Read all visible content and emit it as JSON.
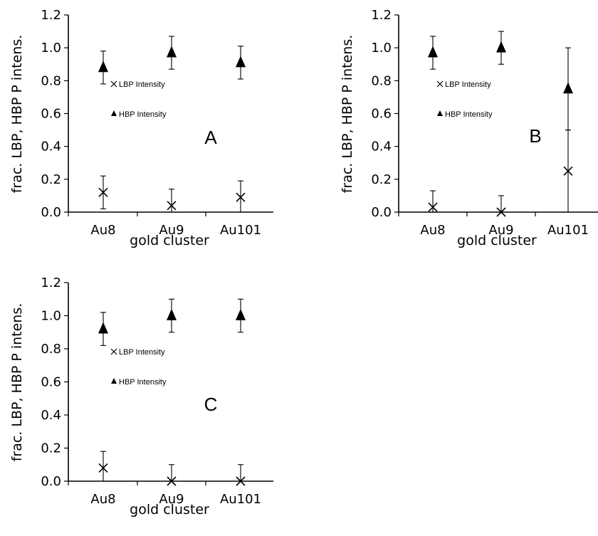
{
  "chart_data": [
    {
      "type": "scatter",
      "panel_label": "A",
      "categories": [
        "Au8",
        "Au9",
        "Au101"
      ],
      "xlabel": "gold cluster",
      "ylabel": "frac. LBP, HBP P intens.",
      "ylim": [
        0,
        1.2
      ],
      "yticks": [
        "0.0",
        "0.2",
        "0.4",
        "0.6",
        "0.8",
        "1.0",
        "1.2"
      ],
      "legend_position": "center-left",
      "series": [
        {
          "name": "LBP  Intensity",
          "marker": "x",
          "values": [
            0.12,
            0.04,
            0.09
          ],
          "errors": [
            0.1,
            0.1,
            0.1
          ]
        },
        {
          "name": "HBP Intensity",
          "marker": "triangle",
          "values": [
            0.88,
            0.97,
            0.91
          ],
          "errors": [
            0.1,
            0.1,
            0.1
          ]
        }
      ]
    },
    {
      "type": "scatter",
      "panel_label": "B",
      "categories": [
        "Au8",
        "Au9",
        "Au101"
      ],
      "xlabel": "gold cluster",
      "ylabel": "frac. LBP, HBP P intens.",
      "ylim": [
        0,
        1.2
      ],
      "yticks": [
        "0.0",
        "0.2",
        "0.4",
        "0.6",
        "0.8",
        "1.0",
        "1.2"
      ],
      "legend_position": "center-left",
      "series": [
        {
          "name": "LBP  Intensity",
          "marker": "x",
          "values": [
            0.03,
            0.0,
            0.25
          ],
          "errors": [
            0.1,
            0.1,
            0.25
          ]
        },
        {
          "name": "HBP Intensity",
          "marker": "triangle",
          "values": [
            0.97,
            1.0,
            0.75
          ],
          "errors": [
            0.1,
            0.1,
            0.25
          ]
        }
      ]
    },
    {
      "type": "scatter",
      "panel_label": "C",
      "categories": [
        "Au8",
        "Au9",
        "Au101"
      ],
      "xlabel": "gold cluster",
      "ylabel": "frac. LBP, HBP P intens.",
      "ylim": [
        0,
        1.2
      ],
      "yticks": [
        "0.0",
        "0.2",
        "0.4",
        "0.6",
        "0.8",
        "1.0",
        "1.2"
      ],
      "legend_position": "center-left",
      "series": [
        {
          "name": "LBP  Intensity",
          "marker": "x",
          "values": [
            0.08,
            0.0,
            0.0
          ],
          "errors": [
            0.1,
            0.1,
            0.1
          ]
        },
        {
          "name": "HBP Intensity",
          "marker": "triangle",
          "values": [
            0.92,
            1.0,
            1.0
          ],
          "errors": [
            0.1,
            0.1,
            0.1
          ]
        }
      ]
    }
  ]
}
